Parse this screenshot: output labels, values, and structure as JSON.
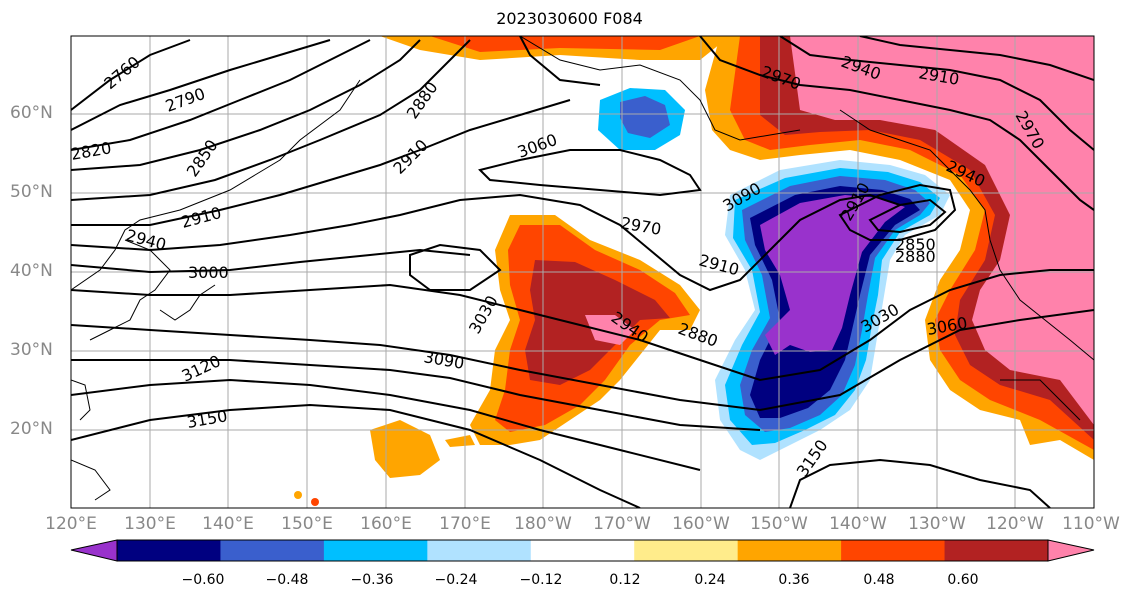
{
  "title": "2023030600 F084",
  "lon_ticks": [
    "120°E",
    "130°E",
    "140°E",
    "150°E",
    "160°E",
    "170°E",
    "180°W",
    "170°W",
    "160°W",
    "150°W",
    "140°W",
    "130°W",
    "120°W",
    "110°W"
  ],
  "lat_ticks": [
    "60°N",
    "50°N",
    "40°N",
    "30°N",
    "20°N"
  ],
  "colorbar": {
    "colors": [
      "#9932cc",
      "#000080",
      "#3a5fcd",
      "#00bfff",
      "#b0e2ff",
      "#ffffff",
      "#ffec8b",
      "#ffa500",
      "#ff4500",
      "#b22222",
      "#ff82ab"
    ],
    "tick_labels": [
      "−0.60",
      "−0.48",
      "−0.36",
      "−0.24",
      "−0.12",
      "0.12",
      "0.24",
      "0.36",
      "0.48",
      "0.60"
    ]
  },
  "contour_labels": [
    "2760",
    "2790",
    "2820",
    "2850",
    "2880",
    "2910",
    "2940",
    "2970",
    "3000",
    "3030",
    "3060",
    "3090",
    "3120",
    "3150"
  ]
}
